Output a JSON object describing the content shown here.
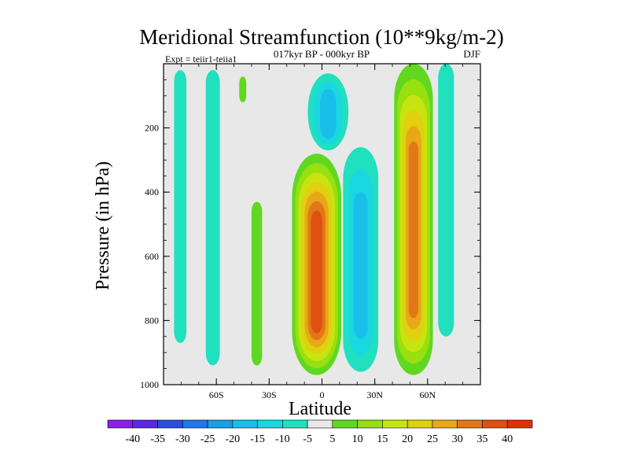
{
  "chart_data": {
    "type": "heatmap",
    "title": "Meridional Streamfunction (10**9kg/m-2)",
    "subtitle": "017kyr BP - 000kyr BP",
    "experiment_label": "Expt = teiir1-teiia1",
    "season_label": "DJF",
    "xlabel": "Latitude",
    "ylabel": "Pressure (in hPa)",
    "x_ticks": [
      {
        "value": -60,
        "label": "60S"
      },
      {
        "value": -30,
        "label": "30S"
      },
      {
        "value": 0,
        "label": "0"
      },
      {
        "value": 30,
        "label": "30N"
      },
      {
        "value": 60,
        "label": "60N"
      }
    ],
    "y_ticks": [
      {
        "value": 200,
        "label": "200"
      },
      {
        "value": 400,
        "label": "400"
      },
      {
        "value": 600,
        "label": "600"
      },
      {
        "value": 800,
        "label": "800"
      },
      {
        "value": 1000,
        "label": "1000"
      }
    ],
    "xlim": [
      -90,
      90
    ],
    "ylim": [
      0,
      1000
    ],
    "y_inverted": true,
    "colorbar": {
      "levels": [
        -40,
        -35,
        -30,
        -25,
        -20,
        -15,
        -10,
        -5,
        5,
        10,
        15,
        20,
        25,
        30,
        35,
        40
      ],
      "colors": [
        "#8a1fe8",
        "#5a28e6",
        "#2a4fe0",
        "#1e78e8",
        "#1a9ee6",
        "#18bfe8",
        "#1ad8e0",
        "#20e0c0",
        "#e8e8e8",
        "#60d820",
        "#98e010",
        "#c8e410",
        "#e0d010",
        "#e8a818",
        "#e07818",
        "#e05010",
        "#e03008"
      ]
    },
    "regions": [
      {
        "name": "sh-polar-band",
        "value": -7,
        "lat": [
          -84,
          -77
        ],
        "p": [
          20,
          870
        ]
      },
      {
        "name": "sh-subpolar-band",
        "value": -7,
        "lat": [
          -66,
          -58
        ],
        "p": [
          20,
          940
        ]
      },
      {
        "name": "sh-midlat-band",
        "value": 7,
        "lat": [
          -40,
          -34
        ],
        "p": [
          430,
          940
        ]
      },
      {
        "name": "upper-sh-patch",
        "value": 7,
        "lat": [
          -47,
          -43
        ],
        "p": [
          40,
          120
        ]
      },
      {
        "name": "equatorial-positive-cell",
        "value": 38,
        "lat": [
          -17,
          11
        ],
        "p": [
          280,
          970
        ]
      },
      {
        "name": "upper-tropical-negative-cell",
        "value": -20,
        "lat": [
          -8,
          15
        ],
        "p": [
          30,
          270
        ]
      },
      {
        "name": "nh-tropical-negative-cell",
        "value": -18,
        "lat": [
          12,
          32
        ],
        "p": [
          260,
          960
        ]
      },
      {
        "name": "nh-midlat-positive-cell",
        "value": 36,
        "lat": [
          41,
          63
        ],
        "p": [
          0,
          970
        ]
      },
      {
        "name": "nh-subpolar-band",
        "value": -7,
        "lat": [
          66,
          75
        ],
        "p": [
          0,
          850
        ]
      }
    ]
  }
}
